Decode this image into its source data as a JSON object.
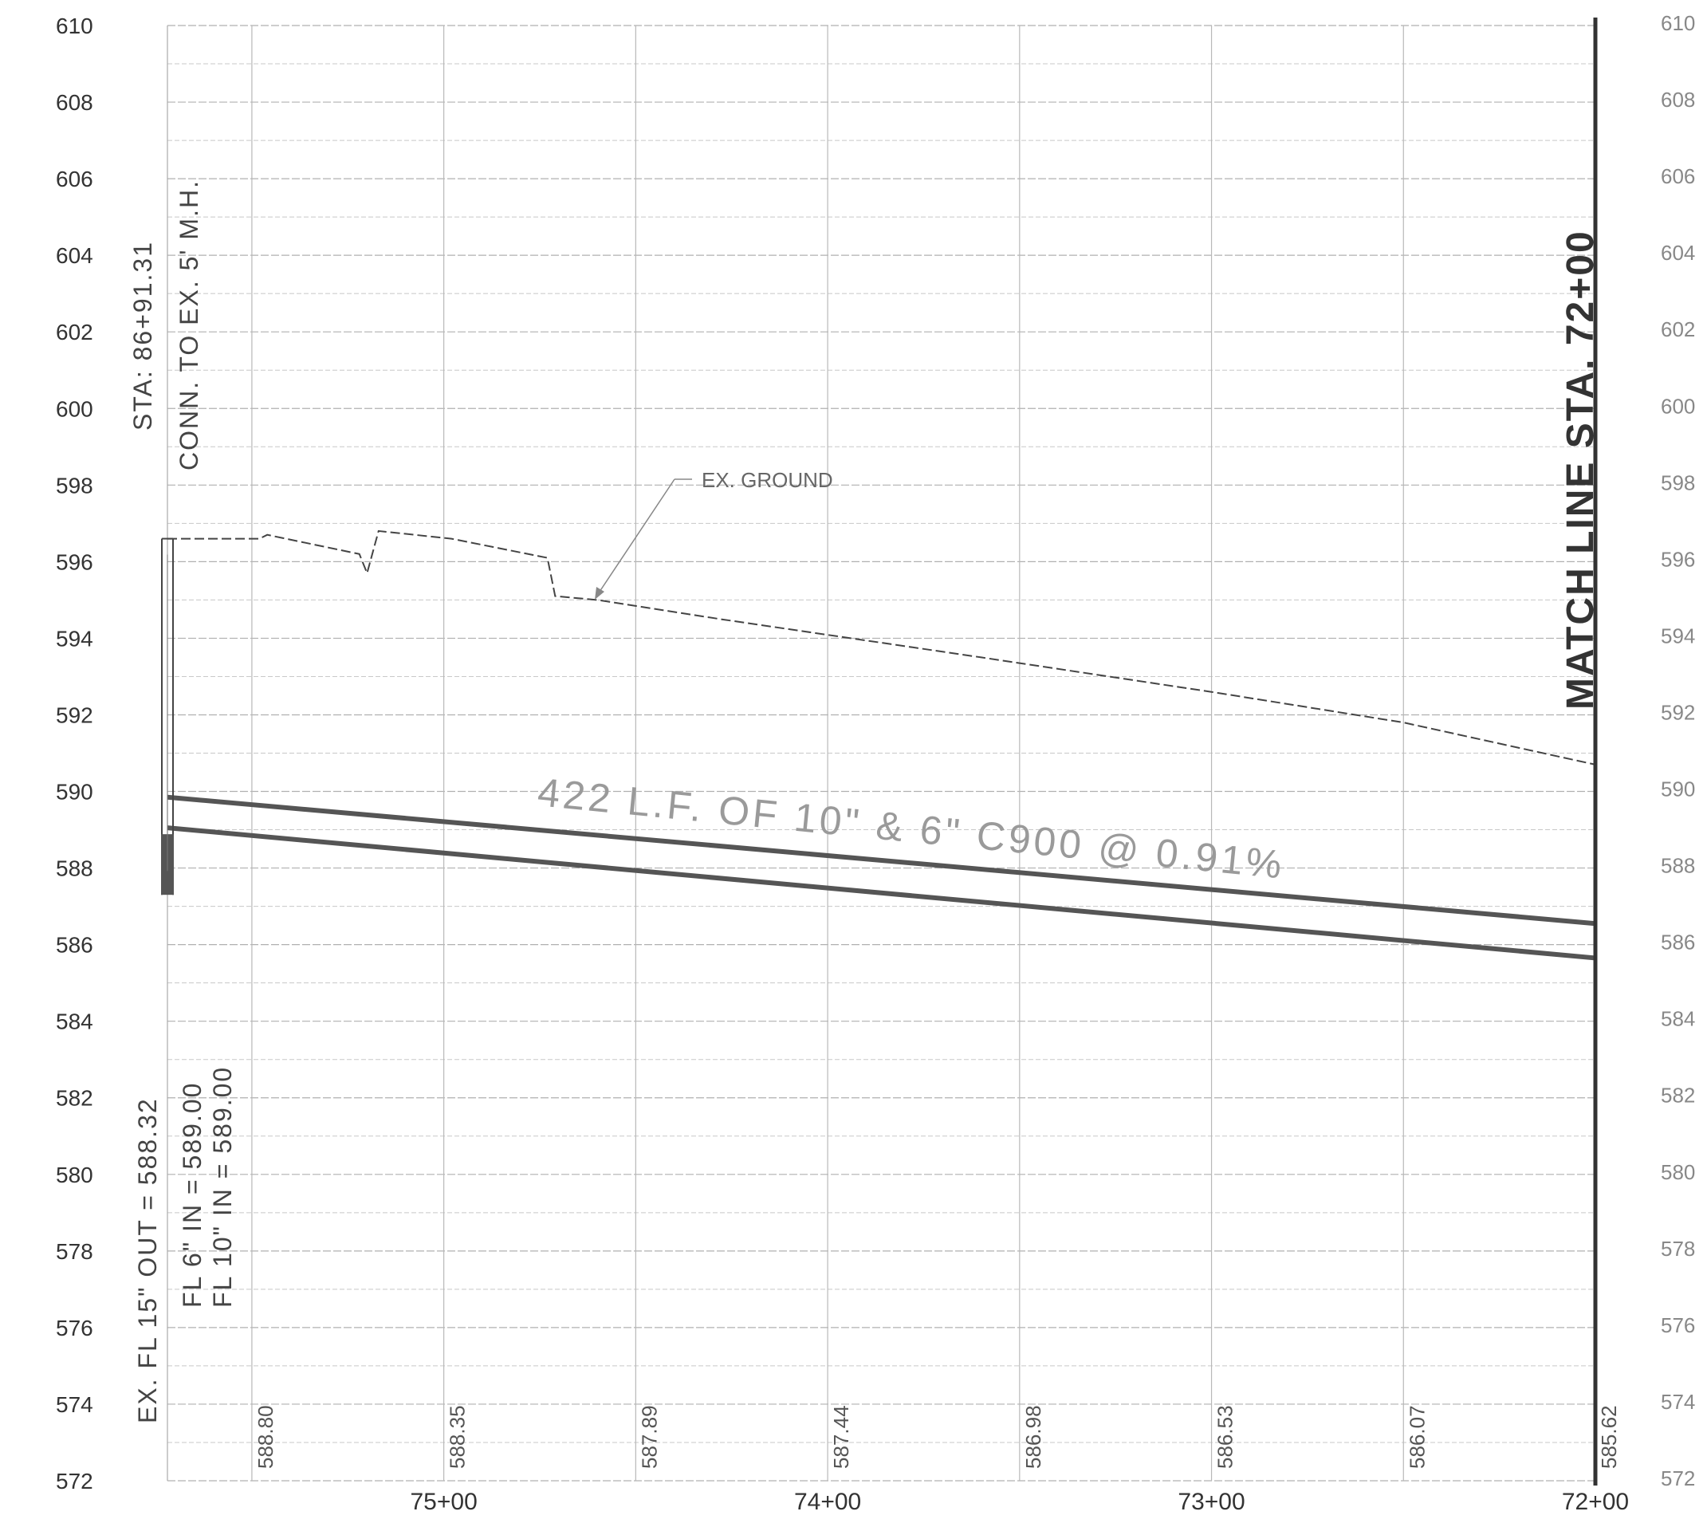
{
  "chart_data": {
    "type": "profile",
    "elevation_range": [
      572,
      610
    ],
    "elevation_ticks": [
      610,
      608,
      606,
      604,
      602,
      600,
      598,
      596,
      594,
      592,
      590,
      588,
      586,
      584,
      582,
      580,
      578,
      576,
      574,
      572
    ],
    "elevation_ticks_left_text": [
      "610",
      "608",
      "606",
      "604",
      "602",
      "600",
      "598",
      "596",
      "594",
      "592",
      "590",
      "588",
      "586",
      "584",
      "582",
      "580",
      "578",
      "576",
      "574",
      "572"
    ],
    "elevation_ticks_right_text": [
      "610",
      "608",
      "606",
      "604",
      "602",
      "600",
      "598",
      "596",
      "594",
      "592",
      "590",
      "588",
      "586",
      "584",
      "582",
      "580",
      "578",
      "576",
      "574",
      "572"
    ],
    "station_range": [
      7200,
      7572
    ],
    "station_ticks": [
      {
        "station": 7500,
        "label": "75+00"
      },
      {
        "station": 7400,
        "label": "74+00"
      },
      {
        "station": 7300,
        "label": "73+00"
      },
      {
        "station": 7200,
        "label": "72+00"
      }
    ],
    "gridline_stations": [
      7550,
      7500,
      7450,
      7400,
      7350,
      7300,
      7250,
      7200
    ],
    "grade_elevations": [
      {
        "station": 7550,
        "label": "588.80"
      },
      {
        "station": 7500,
        "label": "588.35"
      },
      {
        "station": 7450,
        "label": "587.89"
      },
      {
        "station": 7400,
        "label": "587.44"
      },
      {
        "station": 7350,
        "label": "586.98"
      },
      {
        "station": 7300,
        "label": "586.53"
      },
      {
        "station": 7250,
        "label": "586.07"
      },
      {
        "station": 7200,
        "label": "585.62"
      }
    ],
    "existing_ground": [
      {
        "station": 7572,
        "elev": 596.6
      },
      {
        "station": 7548,
        "elev": 596.6
      },
      {
        "station": 7546,
        "elev": 596.7
      },
      {
        "station": 7522,
        "elev": 596.2
      },
      {
        "station": 7520,
        "elev": 595.7
      },
      {
        "station": 7517,
        "elev": 596.8
      },
      {
        "station": 7498,
        "elev": 596.6
      },
      {
        "station": 7473,
        "elev": 596.1
      },
      {
        "station": 7471,
        "elev": 595.1
      },
      {
        "station": 7460,
        "elev": 595.0
      },
      {
        "station": 7428,
        "elev": 594.5
      },
      {
        "station": 7360,
        "elev": 593.5
      },
      {
        "station": 7300,
        "elev": 592.6
      },
      {
        "station": 7250,
        "elev": 591.8
      },
      {
        "station": 7200,
        "elev": 590.7
      }
    ],
    "pipe": {
      "top": [
        {
          "station": 7572,
          "elev": 589.85
        },
        {
          "station": 7200,
          "elev": 586.55
        }
      ],
      "bottom": [
        {
          "station": 7572,
          "elev": 589.05
        },
        {
          "station": 7200,
          "elev": 585.65
        }
      ]
    },
    "manhole": {
      "station": 7572,
      "rim": 596.6,
      "bottom": 587.3
    }
  },
  "annotations": {
    "sta_label": "STA: 86+91.31",
    "conn_label": "CONN. TO EX. 5' M.H.",
    "ex_fl_out": "EX. FL 15\" OUT = 588.32",
    "fl6_in": "FL 6\" IN = 589.00",
    "fl10_in": "FL 10\" IN = 589.00",
    "ex_ground": "EX. GROUND",
    "pipe_label": "422 L.F. OF 10\" & 6\" C900 @ 0.91%",
    "match_line": "MATCH LINE STA. 72+00"
  }
}
